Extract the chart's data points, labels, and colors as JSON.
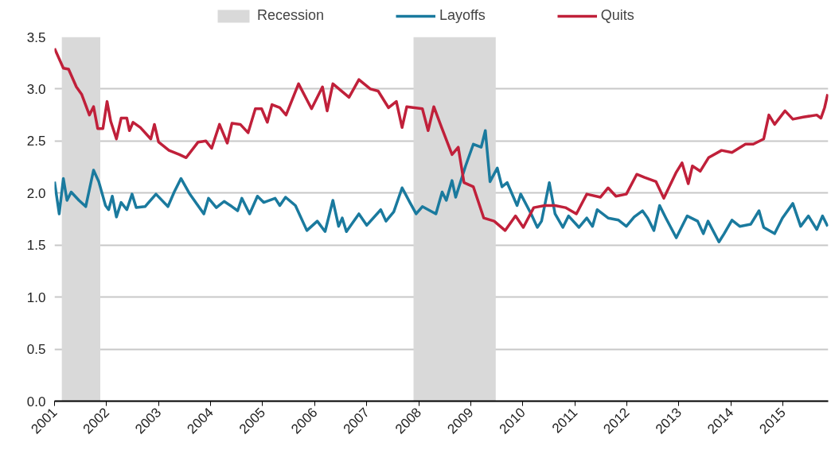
{
  "chart_data": {
    "type": "line",
    "xlim": [
      2001,
      2015.87
    ],
    "ylim": [
      0,
      3.5
    ],
    "xticks": [
      2001,
      2002,
      2003,
      2004,
      2005,
      2006,
      2007,
      2008,
      2009,
      2010,
      2011,
      2012,
      2013,
      2014,
      2015
    ],
    "yticks": [
      {
        "value": 0,
        "label": "0.0"
      },
      0.5,
      {
        "value": 1,
        "label": "1.0"
      },
      1.5,
      {
        "value": 2,
        "label": "2.0"
      },
      2.5,
      {
        "value": 3,
        "label": "3.0"
      },
      3.5
    ],
    "grid": "y",
    "legend": "top",
    "line_style": "solid",
    "marker": "none",
    "bands": [
      {
        "axis": "x",
        "from": 2001.14,
        "to": 2001.88,
        "label": "Recession",
        "color": "#d9d9d9"
      },
      {
        "axis": "x",
        "from": 2007.9,
        "to": 2009.48,
        "color": "#d9d9d9"
      }
    ],
    "series": [
      {
        "name": "Layoffs",
        "color": "#1a7a9e",
        "x": [
          2001.0,
          2001.09,
          2001.17,
          2001.24,
          2001.32,
          2001.47,
          2001.6,
          2001.75,
          2001.85,
          2001.98,
          2002.04,
          2002.11,
          2002.19,
          2002.28,
          2002.39,
          2002.49,
          2002.57,
          2002.74,
          2002.95,
          2003.18,
          2003.3,
          2003.43,
          2003.6,
          2003.87,
          2003.96,
          2004.11,
          2004.26,
          2004.41,
          2004.52,
          2004.6,
          2004.75,
          2004.9,
          2005.02,
          2005.24,
          2005.33,
          2005.44,
          2005.63,
          2005.85,
          2006.05,
          2006.2,
          2006.35,
          2006.46,
          2006.53,
          2006.61,
          2006.85,
          2007.0,
          2007.27,
          2007.37,
          2007.52,
          2007.68,
          2007.83,
          2007.95,
          2008.07,
          2008.33,
          2008.45,
          2008.53,
          2008.64,
          2008.71,
          2008.9,
          2009.05,
          2009.2,
          2009.28,
          2009.37,
          2009.51,
          2009.6,
          2009.7,
          2009.89,
          2009.96,
          2010.16,
          2010.28,
          2010.36,
          2010.51,
          2010.62,
          2010.77,
          2010.88,
          2011.08,
          2011.23,
          2011.34,
          2011.43,
          2011.64,
          2011.84,
          2011.99,
          2012.14,
          2012.3,
          2012.4,
          2012.52,
          2012.63,
          2012.75,
          2012.95,
          2013.16,
          2013.36,
          2013.47,
          2013.56,
          2013.77,
          2013.87,
          2014.02,
          2014.17,
          2014.38,
          2014.54,
          2014.63,
          2014.84,
          2014.99,
          2015.19,
          2015.34,
          2015.49,
          2015.65,
          2015.76,
          2015.86
        ],
        "values": [
          2.11,
          1.8,
          2.14,
          1.93,
          2.01,
          1.93,
          1.87,
          2.22,
          2.11,
          1.88,
          1.84,
          1.97,
          1.77,
          1.91,
          1.84,
          1.99,
          1.86,
          1.87,
          1.99,
          1.87,
          2.01,
          2.14,
          1.99,
          1.8,
          1.95,
          1.86,
          1.92,
          1.87,
          1.83,
          1.95,
          1.8,
          1.97,
          1.91,
          1.95,
          1.88,
          1.96,
          1.88,
          1.64,
          1.73,
          1.63,
          1.93,
          1.68,
          1.76,
          1.63,
          1.8,
          1.69,
          1.84,
          1.73,
          1.82,
          2.05,
          1.91,
          1.8,
          1.87,
          1.8,
          2.01,
          1.93,
          2.12,
          1.96,
          2.26,
          2.47,
          2.44,
          2.6,
          2.11,
          2.24,
          2.06,
          2.1,
          1.88,
          1.99,
          1.8,
          1.67,
          1.73,
          2.1,
          1.8,
          1.67,
          1.78,
          1.67,
          1.76,
          1.68,
          1.84,
          1.76,
          1.74,
          1.68,
          1.77,
          1.83,
          1.76,
          1.64,
          1.88,
          1.76,
          1.57,
          1.78,
          1.73,
          1.61,
          1.73,
          1.53,
          1.61,
          1.74,
          1.68,
          1.7,
          1.83,
          1.67,
          1.61,
          1.76,
          1.9,
          1.68,
          1.78,
          1.65,
          1.78,
          1.68
        ]
      },
      {
        "name": "Quits",
        "color": "#c0203a",
        "x": [
          2001.0,
          2001.17,
          2001.27,
          2001.42,
          2001.52,
          2001.67,
          2001.75,
          2001.83,
          2001.93,
          2002.01,
          2002.08,
          2002.19,
          2002.28,
          2002.39,
          2002.44,
          2002.51,
          2002.65,
          2002.85,
          2002.92,
          2003.0,
          2003.2,
          2003.4,
          2003.53,
          2003.76,
          2003.91,
          2004.02,
          2004.17,
          2004.32,
          2004.41,
          2004.57,
          2004.72,
          2004.86,
          2004.98,
          2005.09,
          2005.18,
          2005.33,
          2005.45,
          2005.69,
          2005.94,
          2006.15,
          2006.24,
          2006.35,
          2006.66,
          2006.85,
          2007.07,
          2007.22,
          2007.42,
          2007.57,
          2007.68,
          2007.77,
          2008.07,
          2008.18,
          2008.29,
          2008.44,
          2008.64,
          2008.76,
          2008.87,
          2009.05,
          2009.25,
          2009.45,
          2009.66,
          2009.86,
          2010.01,
          2010.21,
          2010.42,
          2010.62,
          2010.82,
          2011.03,
          2011.23,
          2011.49,
          2011.64,
          2011.79,
          2011.99,
          2012.19,
          2012.34,
          2012.56,
          2012.71,
          2012.95,
          2013.06,
          2013.18,
          2013.26,
          2013.41,
          2013.57,
          2013.82,
          2014.02,
          2014.28,
          2014.43,
          2014.63,
          2014.73,
          2014.84,
          2015.04,
          2015.19,
          2015.39,
          2015.65,
          2015.73,
          2015.8,
          2015.86
        ],
        "values": [
          3.39,
          3.2,
          3.19,
          3.02,
          2.95,
          2.75,
          2.83,
          2.62,
          2.62,
          2.88,
          2.69,
          2.52,
          2.72,
          2.72,
          2.6,
          2.68,
          2.63,
          2.52,
          2.66,
          2.49,
          2.41,
          2.37,
          2.34,
          2.49,
          2.5,
          2.43,
          2.66,
          2.48,
          2.67,
          2.66,
          2.58,
          2.81,
          2.81,
          2.68,
          2.85,
          2.82,
          2.75,
          3.05,
          2.81,
          3.02,
          2.79,
          3.05,
          2.92,
          3.09,
          3.0,
          2.98,
          2.82,
          2.88,
          2.63,
          2.83,
          2.81,
          2.6,
          2.83,
          2.63,
          2.37,
          2.44,
          2.1,
          2.06,
          1.76,
          1.73,
          1.64,
          1.78,
          1.67,
          1.86,
          1.88,
          1.88,
          1.86,
          1.8,
          1.99,
          1.96,
          2.05,
          1.97,
          1.99,
          2.18,
          2.15,
          2.11,
          1.95,
          2.2,
          2.29,
          2.09,
          2.26,
          2.21,
          2.34,
          2.41,
          2.39,
          2.47,
          2.47,
          2.52,
          2.75,
          2.66,
          2.79,
          2.71,
          2.73,
          2.75,
          2.72,
          2.82,
          2.95
        ]
      }
    ]
  }
}
